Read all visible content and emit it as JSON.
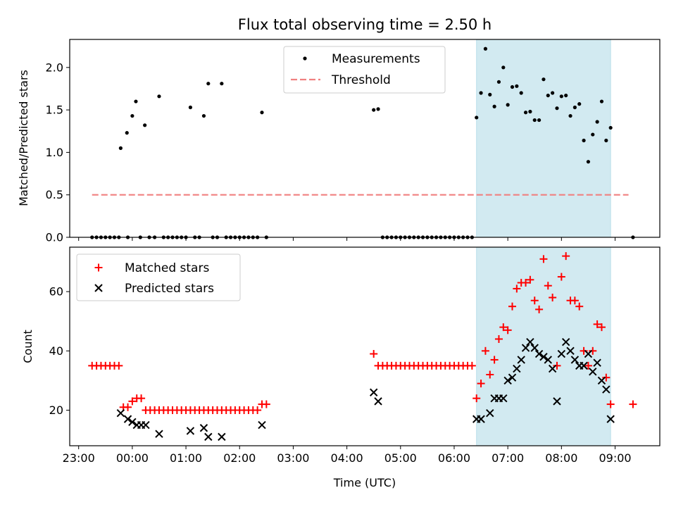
{
  "chart_data": [
    {
      "type": "scatter",
      "title": "Flux total observing time = 2.50 h",
      "ylabel": "Matched/Predicted stars",
      "xlabel": "",
      "xlim": [
        "22:50",
        "09:50"
      ],
      "ylim": [
        0,
        2.33
      ],
      "yticks": [
        0.0,
        0.5,
        1.0,
        1.5,
        2.0
      ],
      "ytick_labels": [
        "0.0",
        "0.5",
        "1.0",
        "1.5",
        "2.0"
      ],
      "grid": false,
      "legend": "top-center",
      "shaded_region": {
        "start": "06:25",
        "end": "08:55",
        "color": "#add8e6"
      },
      "threshold": {
        "name": "Threshold",
        "y": 0.5,
        "x_start": "23:15",
        "x_end": "09:15",
        "color": "#f08080"
      },
      "series": [
        {
          "name": "Measurements",
          "color": "#000000",
          "points": [
            [
              "23:15",
              0
            ],
            [
              "23:20",
              0
            ],
            [
              "23:25",
              0
            ],
            [
              "23:30",
              0
            ],
            [
              "23:35",
              0
            ],
            [
              "23:40",
              0
            ],
            [
              "23:45",
              0
            ],
            [
              "23:47",
              1.05
            ],
            [
              "23:54",
              1.23
            ],
            [
              "23:55",
              0
            ],
            [
              "24:00",
              1.43
            ],
            [
              "24:04",
              1.6
            ],
            [
              "24:09",
              0
            ],
            [
              "24:14",
              1.32
            ],
            [
              "24:19",
              0
            ],
            [
              "24:25",
              0
            ],
            [
              "24:30",
              1.66
            ],
            [
              "24:35",
              0
            ],
            [
              "24:40",
              0
            ],
            [
              "24:45",
              0
            ],
            [
              "24:50",
              0
            ],
            [
              "24:55",
              0
            ],
            [
              "25:00",
              0
            ],
            [
              "25:05",
              1.53
            ],
            [
              "25:10",
              0
            ],
            [
              "25:15",
              0
            ],
            [
              "25:20",
              1.43
            ],
            [
              "25:25",
              1.81
            ],
            [
              "25:30",
              0
            ],
            [
              "25:35",
              0
            ],
            [
              "25:40",
              1.81
            ],
            [
              "25:45",
              0
            ],
            [
              "25:50",
              0
            ],
            [
              "25:55",
              0
            ],
            [
              "26:00",
              0
            ],
            [
              "26:05",
              0
            ],
            [
              "26:10",
              0
            ],
            [
              "26:15",
              0
            ],
            [
              "26:20",
              0
            ],
            [
              "26:25",
              1.47
            ],
            [
              "26:30",
              0
            ],
            [
              "28:30",
              1.5
            ],
            [
              "28:35",
              1.51
            ],
            [
              "28:40",
              0
            ],
            [
              "28:45",
              0
            ],
            [
              "28:50",
              0
            ],
            [
              "28:55",
              0
            ],
            [
              "29:00",
              0
            ],
            [
              "29:05",
              0
            ],
            [
              "29:10",
              0
            ],
            [
              "29:15",
              0
            ],
            [
              "29:20",
              0
            ],
            [
              "29:25",
              0
            ],
            [
              "29:30",
              0
            ],
            [
              "29:35",
              0
            ],
            [
              "29:40",
              0
            ],
            [
              "29:45",
              0
            ],
            [
              "29:50",
              0
            ],
            [
              "29:55",
              0
            ],
            [
              "30:00",
              0
            ],
            [
              "30:05",
              0
            ],
            [
              "30:10",
              0
            ],
            [
              "30:15",
              0
            ],
            [
              "30:20",
              0
            ],
            [
              "30:25",
              1.41
            ],
            [
              "30:30",
              1.7
            ],
            [
              "30:35",
              2.22
            ],
            [
              "30:40",
              1.68
            ],
            [
              "30:45",
              1.54
            ],
            [
              "30:50",
              1.83
            ],
            [
              "30:55",
              2.0
            ],
            [
              "31:00",
              1.56
            ],
            [
              "31:05",
              1.77
            ],
            [
              "31:10",
              1.78
            ],
            [
              "31:15",
              1.7
            ],
            [
              "31:20",
              1.47
            ],
            [
              "31:25",
              1.48
            ],
            [
              "31:30",
              1.38
            ],
            [
              "31:35",
              1.38
            ],
            [
              "31:40",
              1.86
            ],
            [
              "31:45",
              1.67
            ],
            [
              "31:50",
              1.7
            ],
            [
              "31:55",
              1.52
            ],
            [
              "32:00",
              1.66
            ],
            [
              "32:05",
              1.67
            ],
            [
              "32:10",
              1.43
            ],
            [
              "32:15",
              1.53
            ],
            [
              "32:20",
              1.57
            ],
            [
              "32:25",
              1.14
            ],
            [
              "32:30",
              0.89
            ],
            [
              "32:35",
              1.21
            ],
            [
              "32:40",
              1.36
            ],
            [
              "32:45",
              1.6
            ],
            [
              "32:50",
              1.14
            ],
            [
              "32:55",
              1.29
            ],
            [
              "33:20",
              0
            ]
          ]
        }
      ]
    },
    {
      "type": "scatter",
      "title": "",
      "ylabel": "Count",
      "xlabel": "Time (UTC)",
      "xlim": [
        "22:50",
        "09:50"
      ],
      "ylim": [
        8,
        75
      ],
      "yticks": [
        20,
        40,
        60
      ],
      "ytick_labels": [
        "20",
        "40",
        "60"
      ],
      "xtick_labels": [
        "23:00",
        "00:00",
        "01:00",
        "02:00",
        "03:00",
        "04:00",
        "05:00",
        "06:00",
        "07:00",
        "08:00",
        "09:00"
      ],
      "grid": false,
      "legend": "top-left",
      "shaded_region": {
        "start": "06:25",
        "end": "08:55",
        "color": "#add8e6"
      },
      "series": [
        {
          "name": "Matched stars",
          "marker": "+",
          "color": "#ff0000",
          "points": [
            [
              "23:15",
              35
            ],
            [
              "23:20",
              35
            ],
            [
              "23:25",
              35
            ],
            [
              "23:30",
              35
            ],
            [
              "23:35",
              35
            ],
            [
              "23:40",
              35
            ],
            [
              "23:45",
              35
            ],
            [
              "23:50",
              21
            ],
            [
              "23:55",
              21
            ],
            [
              "24:00",
              23
            ],
            [
              "24:05",
              24
            ],
            [
              "24:10",
              24
            ],
            [
              "24:15",
              20
            ],
            [
              "24:20",
              20
            ],
            [
              "24:25",
              20
            ],
            [
              "24:30",
              20
            ],
            [
              "24:35",
              20
            ],
            [
              "24:40",
              20
            ],
            [
              "24:45",
              20
            ],
            [
              "24:50",
              20
            ],
            [
              "24:55",
              20
            ],
            [
              "25:00",
              20
            ],
            [
              "25:05",
              20
            ],
            [
              "25:10",
              20
            ],
            [
              "25:15",
              20
            ],
            [
              "25:20",
              20
            ],
            [
              "25:25",
              20
            ],
            [
              "25:30",
              20
            ],
            [
              "25:35",
              20
            ],
            [
              "25:40",
              20
            ],
            [
              "25:45",
              20
            ],
            [
              "25:50",
              20
            ],
            [
              "25:55",
              20
            ],
            [
              "26:00",
              20
            ],
            [
              "26:05",
              20
            ],
            [
              "26:10",
              20
            ],
            [
              "26:15",
              20
            ],
            [
              "26:20",
              20
            ],
            [
              "26:25",
              22
            ],
            [
              "26:30",
              22
            ],
            [
              "28:30",
              39
            ],
            [
              "28:35",
              35
            ],
            [
              "28:40",
              35
            ],
            [
              "28:45",
              35
            ],
            [
              "28:50",
              35
            ],
            [
              "28:55",
              35
            ],
            [
              "29:00",
              35
            ],
            [
              "29:05",
              35
            ],
            [
              "29:10",
              35
            ],
            [
              "29:15",
              35
            ],
            [
              "29:20",
              35
            ],
            [
              "29:25",
              35
            ],
            [
              "29:30",
              35
            ],
            [
              "29:35",
              35
            ],
            [
              "29:40",
              35
            ],
            [
              "29:45",
              35
            ],
            [
              "29:50",
              35
            ],
            [
              "29:55",
              35
            ],
            [
              "30:00",
              35
            ],
            [
              "30:05",
              35
            ],
            [
              "30:10",
              35
            ],
            [
              "30:15",
              35
            ],
            [
              "30:20",
              35
            ],
            [
              "30:25",
              24
            ],
            [
              "30:30",
              29
            ],
            [
              "30:35",
              40
            ],
            [
              "30:40",
              32
            ],
            [
              "30:45",
              37
            ],
            [
              "30:50",
              44
            ],
            [
              "30:55",
              48
            ],
            [
              "31:00",
              47
            ],
            [
              "31:05",
              55
            ],
            [
              "31:10",
              61
            ],
            [
              "31:15",
              63
            ],
            [
              "31:20",
              63
            ],
            [
              "31:25",
              64
            ],
            [
              "31:30",
              57
            ],
            [
              "31:35",
              54
            ],
            [
              "31:40",
              71
            ],
            [
              "31:45",
              62
            ],
            [
              "31:50",
              58
            ],
            [
              "31:55",
              35
            ],
            [
              "32:00",
              65
            ],
            [
              "32:05",
              72
            ],
            [
              "32:10",
              57
            ],
            [
              "32:15",
              57
            ],
            [
              "32:20",
              55
            ],
            [
              "32:25",
              40
            ],
            [
              "32:30",
              35
            ],
            [
              "32:35",
              40
            ],
            [
              "32:40",
              49
            ],
            [
              "32:45",
              48
            ],
            [
              "32:50",
              31
            ],
            [
              "32:55",
              22
            ],
            [
              "33:20",
              22
            ]
          ]
        },
        {
          "name": "Predicted stars",
          "marker": "x",
          "color": "#000000",
          "points": [
            [
              "23:47",
              19
            ],
            [
              "23:55",
              17
            ],
            [
              "24:00",
              16
            ],
            [
              "24:05",
              15
            ],
            [
              "24:10",
              15
            ],
            [
              "24:15",
              15
            ],
            [
              "24:30",
              12
            ],
            [
              "25:05",
              13
            ],
            [
              "25:20",
              14
            ],
            [
              "25:25",
              11
            ],
            [
              "25:40",
              11
            ],
            [
              "26:25",
              15
            ],
            [
              "28:30",
              26
            ],
            [
              "28:35",
              23
            ],
            [
              "30:25",
              17
            ],
            [
              "30:30",
              17
            ],
            [
              "30:40",
              19
            ],
            [
              "30:45",
              24
            ],
            [
              "30:50",
              24
            ],
            [
              "30:55",
              24
            ],
            [
              "31:00",
              30
            ],
            [
              "31:05",
              31
            ],
            [
              "31:10",
              34
            ],
            [
              "31:15",
              37
            ],
            [
              "31:20",
              41
            ],
            [
              "31:25",
              43
            ],
            [
              "31:30",
              41
            ],
            [
              "31:35",
              39
            ],
            [
              "31:40",
              38
            ],
            [
              "31:45",
              37
            ],
            [
              "31:50",
              34
            ],
            [
              "31:55",
              23
            ],
            [
              "32:00",
              39
            ],
            [
              "32:05",
              43
            ],
            [
              "32:10",
              40
            ],
            [
              "32:15",
              37
            ],
            [
              "32:20",
              35
            ],
            [
              "32:25",
              35
            ],
            [
              "32:30",
              39
            ],
            [
              "32:35",
              33
            ],
            [
              "32:40",
              36
            ],
            [
              "32:45",
              30
            ],
            [
              "32:50",
              27
            ],
            [
              "32:55",
              17
            ]
          ]
        }
      ]
    }
  ]
}
